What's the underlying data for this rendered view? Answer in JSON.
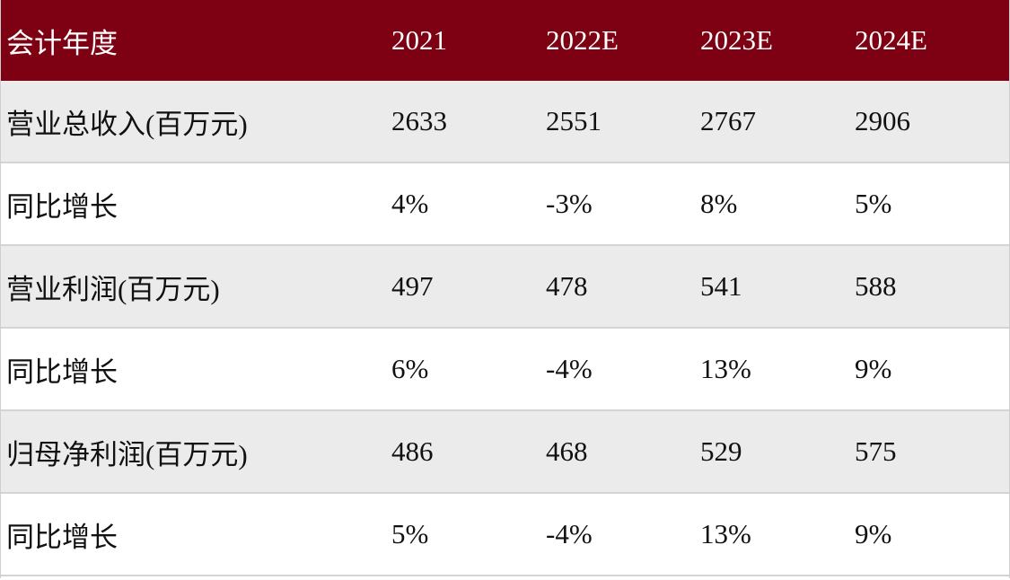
{
  "table": {
    "header": [
      "会计年度",
      "2021",
      "2022E",
      "2023E",
      "2024E"
    ],
    "rows": [
      [
        "营业总收入(百万元)",
        "2633",
        "2551",
        "2767",
        "2906"
      ],
      [
        "同比增长",
        "4%",
        "-3%",
        "8%",
        "5%"
      ],
      [
        "营业利润(百万元)",
        "497",
        "478",
        "541",
        "588"
      ],
      [
        "同比增长",
        "6%",
        "-4%",
        "13%",
        "9%"
      ],
      [
        "归母净利润(百万元)",
        "486",
        "468",
        "529",
        "575"
      ],
      [
        "同比增长",
        "5%",
        "-4%",
        "13%",
        "9%"
      ]
    ]
  }
}
